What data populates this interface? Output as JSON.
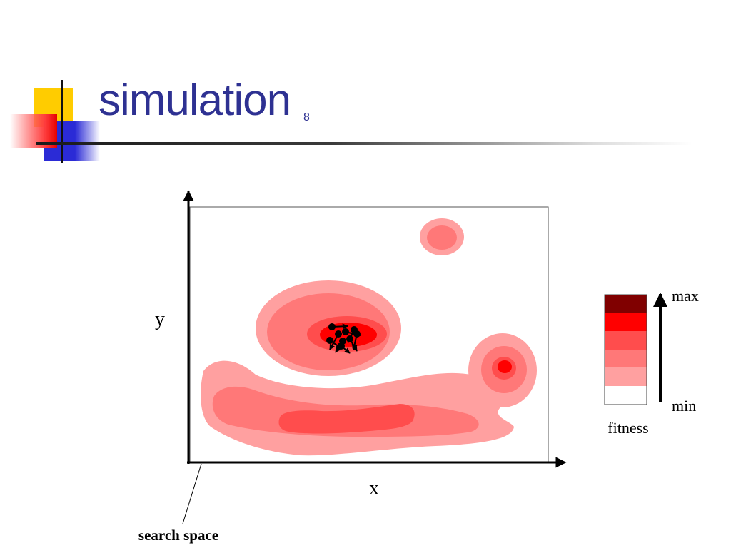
{
  "slide": {
    "title": "simulation",
    "number": "8"
  },
  "diagram": {
    "x_axis_label": "x",
    "y_axis_label": "y",
    "search_space_label": "search space",
    "legend": {
      "max_label": "max",
      "min_label": "min",
      "title": "fitness",
      "colors": [
        "#800000",
        "#ff0000",
        "#ff4d4d",
        "#ff7878",
        "#ffa0a0",
        "#ffffff"
      ]
    },
    "contour_colors": {
      "level1": "#ffa0a0",
      "level2": "#ff7878",
      "level3": "#ff4d4d",
      "level4": "#ff0000"
    }
  }
}
